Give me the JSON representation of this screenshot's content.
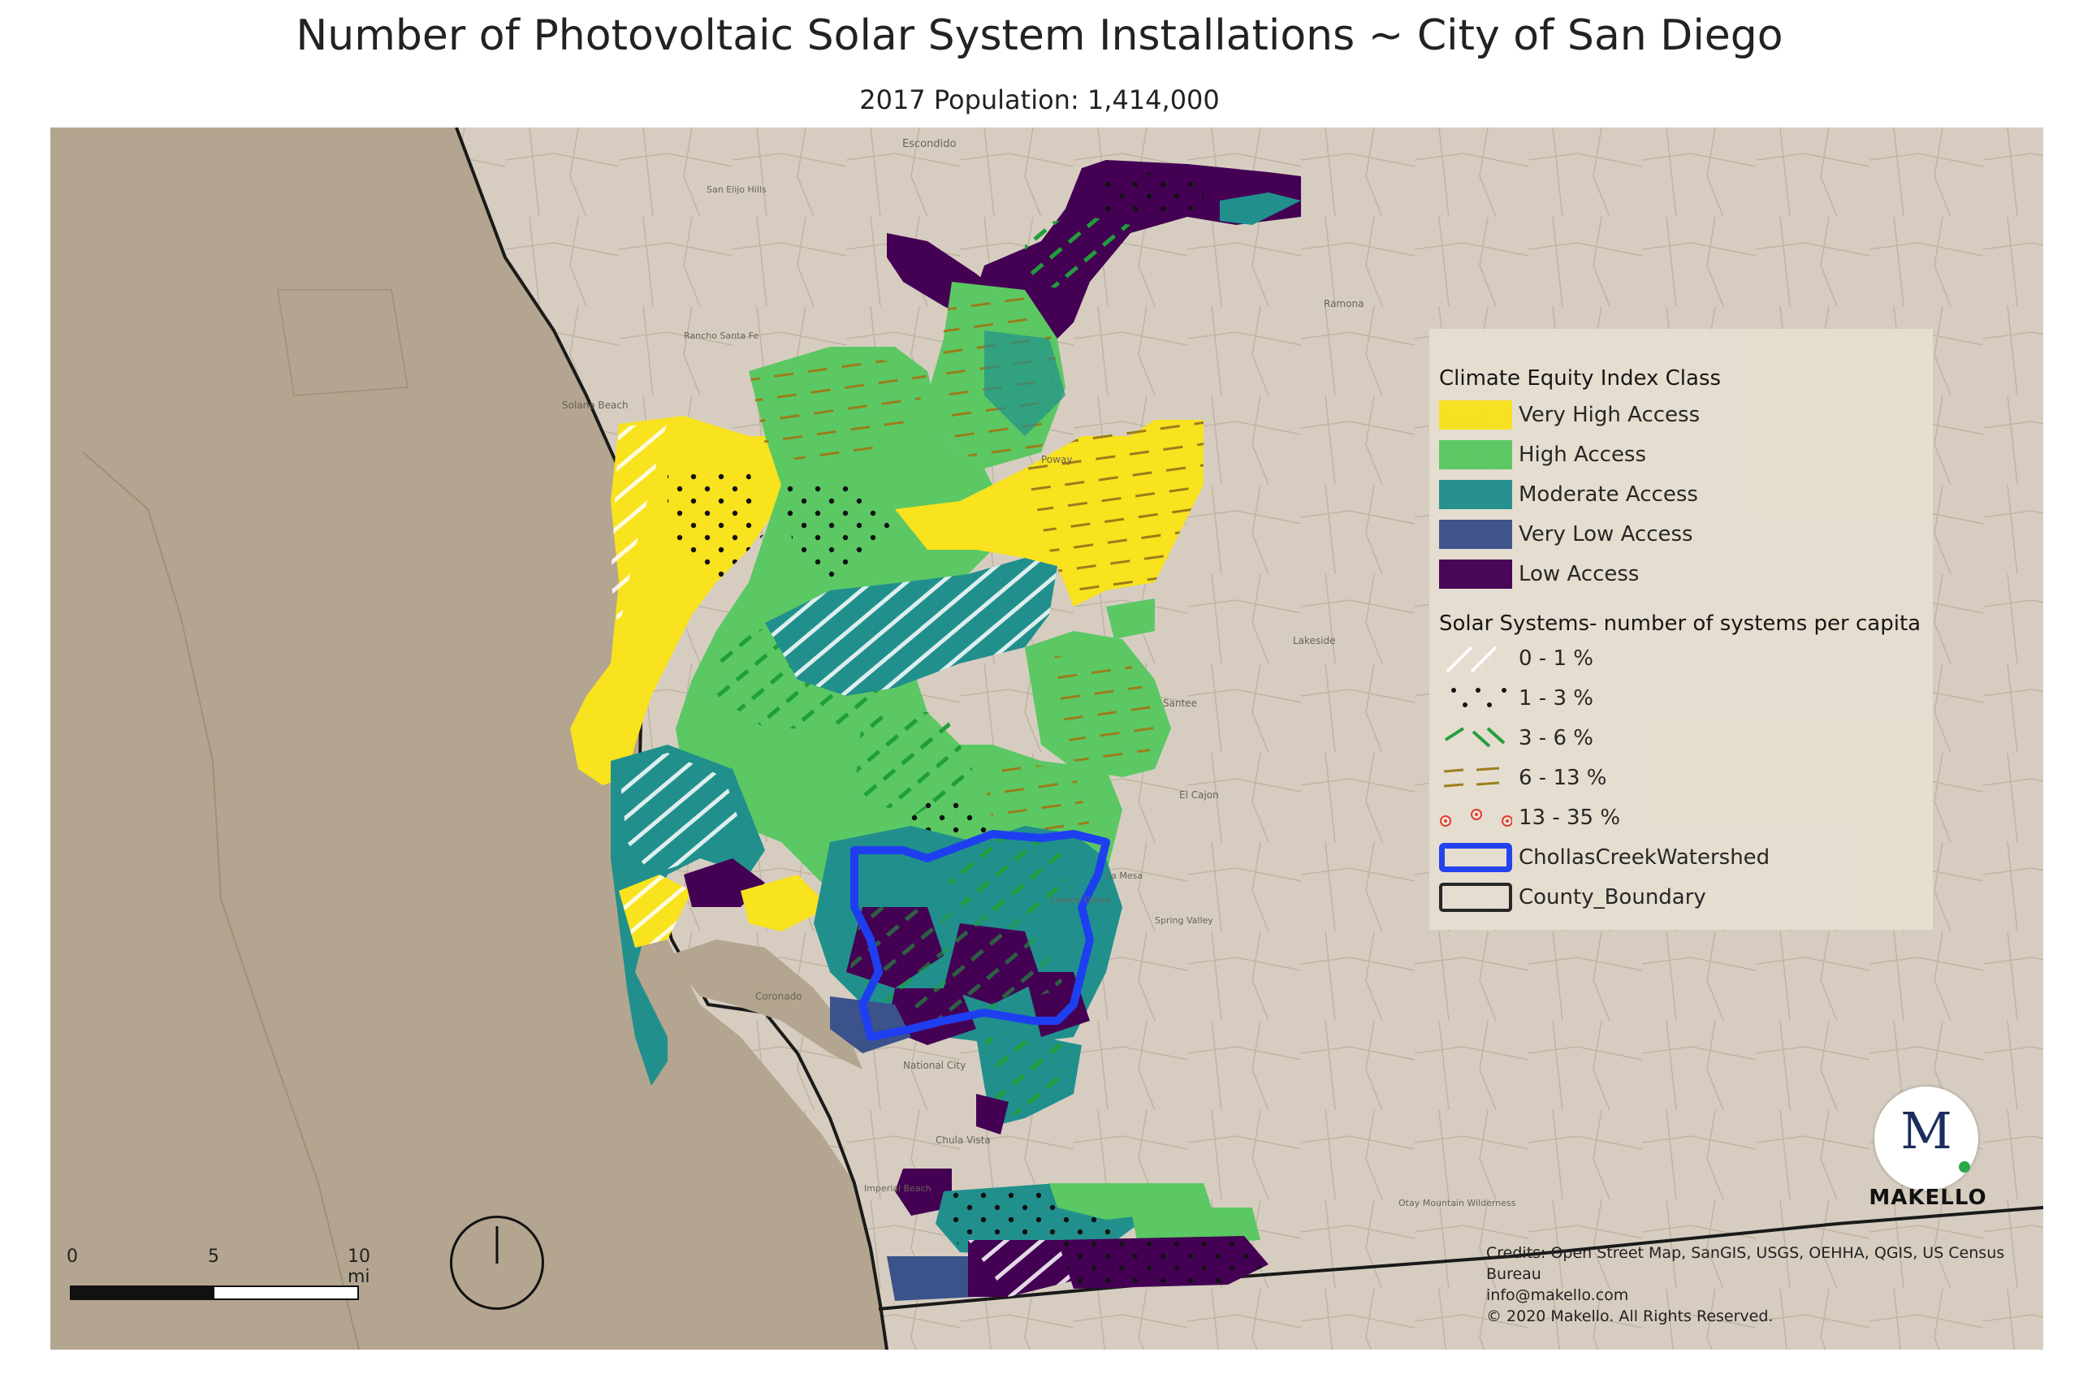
{
  "title": "Number of Photovoltaic Solar System Installations ~ City of San Diego",
  "subtitle": "2017 Population: 1,414,000",
  "legend": {
    "section1_title": "Climate Equity Index Class",
    "classes": [
      {
        "label": "Very High Access",
        "color": "#f9e21e"
      },
      {
        "label": "High Access",
        "color": "#5bc863"
      },
      {
        "label": "Moderate Access",
        "color": "#21908d"
      },
      {
        "label": "Very Low Access",
        "color": "#3b528b"
      },
      {
        "label": "Low Access",
        "color": "#440154"
      }
    ],
    "section2_title": "Solar  Systems- number of systems per capita",
    "solar": [
      {
        "label": "0 - 1 %",
        "pattern": "white-diagonal"
      },
      {
        "label": "1 - 3 %",
        "pattern": "black-dots"
      },
      {
        "label": "3 - 6 %",
        "pattern": "green-dashes"
      },
      {
        "label": "6 - 13 %",
        "pattern": "olive-dashes"
      },
      {
        "label": "13 - 35 %",
        "pattern": "red-rings"
      }
    ],
    "boundaries": [
      {
        "label": "ChollasCreekWatershed",
        "color": "#1e3ff0"
      },
      {
        "label": "County_Boundary",
        "color": "#222222"
      }
    ]
  },
  "scale": {
    "ticks": [
      "0",
      "5",
      "10 mi"
    ]
  },
  "logo": {
    "text": "MAKELLO",
    "mark": "M"
  },
  "credits": [
    "Credits: Open Street Map, SanGIS, USGS, OEHHA, QGIS, US Census Bureau",
    "info@makello.com",
    "© 2020 Makello. All Rights Reserved."
  ],
  "basemap_labels": [
    "Escondido",
    "San Elijo Hills",
    "Rancho Santa Fe",
    "Solana Beach",
    "Poway",
    "Ramona",
    "Santee",
    "Lakeside",
    "El Cajon",
    "La Mesa",
    "Spring Valley",
    "Lemon Grove",
    "National City",
    "Coronado",
    "Chula Vista",
    "Imperial Beach",
    "Otay Mountain Wilderness"
  ]
}
